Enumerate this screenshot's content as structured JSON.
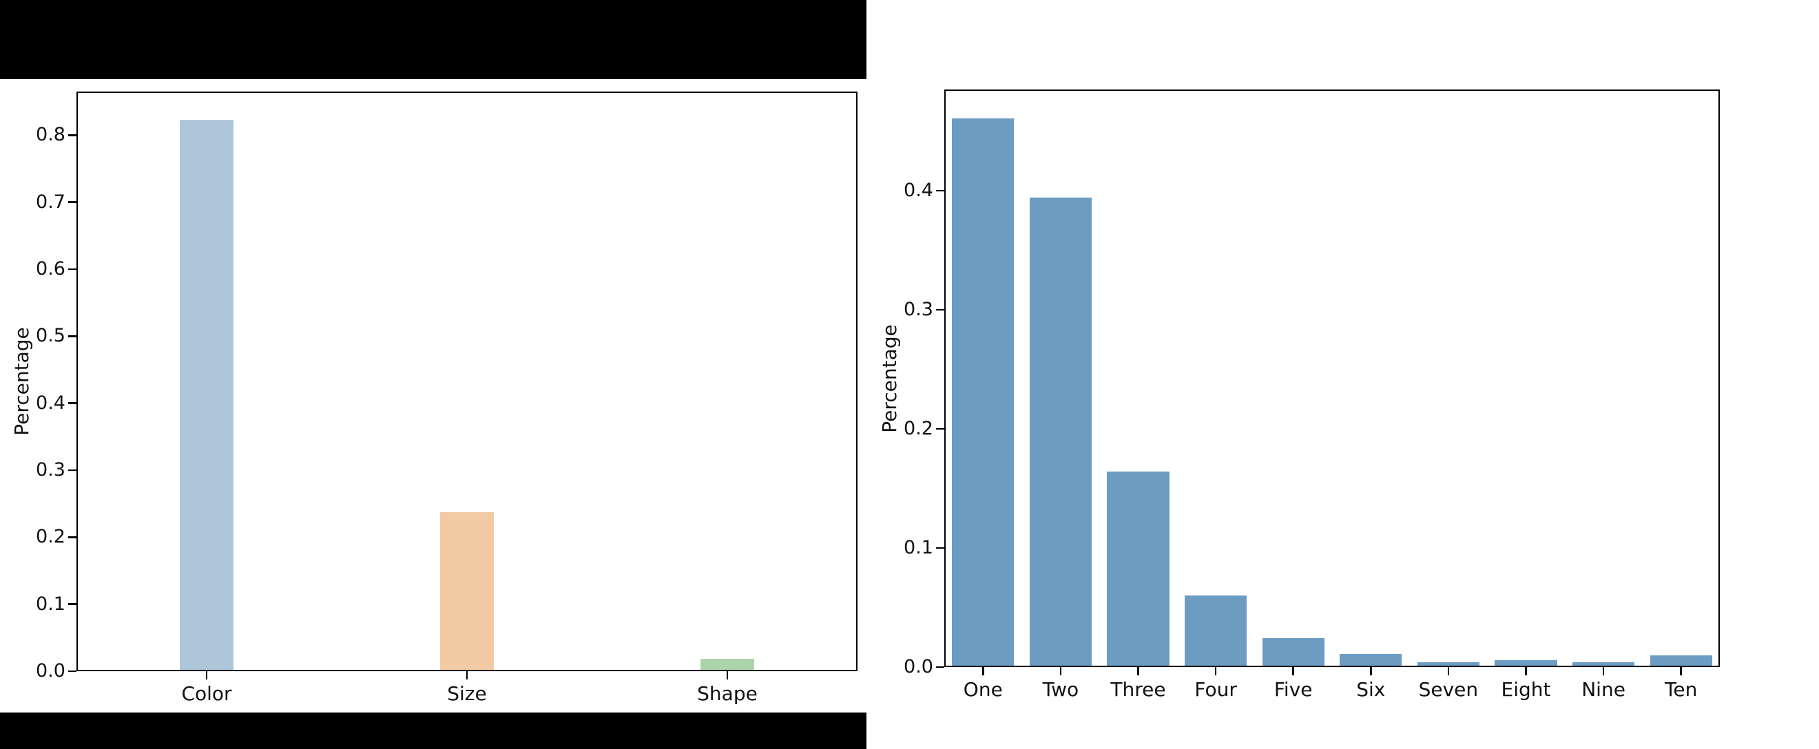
{
  "page": {
    "background_color": "#ffffff",
    "redaction_color": "#000000"
  },
  "chart_data": [
    {
      "type": "bar",
      "title": "",
      "xlabel": "",
      "ylabel": "Percentage",
      "categories": [
        "Color",
        "Size",
        "Shape"
      ],
      "values": [
        0.823,
        0.237,
        0.018
      ],
      "bar_colors": [
        "#aec6da",
        "#f2cba4",
        "#acd3a9"
      ],
      "ylim": [
        0,
        0.865
      ],
      "yticks": [
        0.0,
        0.1,
        0.2,
        0.3,
        0.4,
        0.5,
        0.6,
        0.7,
        0.8
      ],
      "grid": false,
      "legend": null
    },
    {
      "type": "bar",
      "title": "",
      "xlabel": "",
      "ylabel": "Percentage",
      "categories": [
        "One",
        "Two",
        "Three",
        "Four",
        "Five",
        "Six",
        "Seven",
        "Eight",
        "Nine",
        "Ten"
      ],
      "values": [
        0.461,
        0.394,
        0.164,
        0.06,
        0.024,
        0.011,
        0.004,
        0.006,
        0.004,
        0.01
      ],
      "bar_color": "#6c9cc2",
      "ylim": [
        0,
        0.485
      ],
      "yticks": [
        0.0,
        0.1,
        0.2,
        0.3,
        0.4
      ],
      "grid": false,
      "legend": null
    }
  ]
}
